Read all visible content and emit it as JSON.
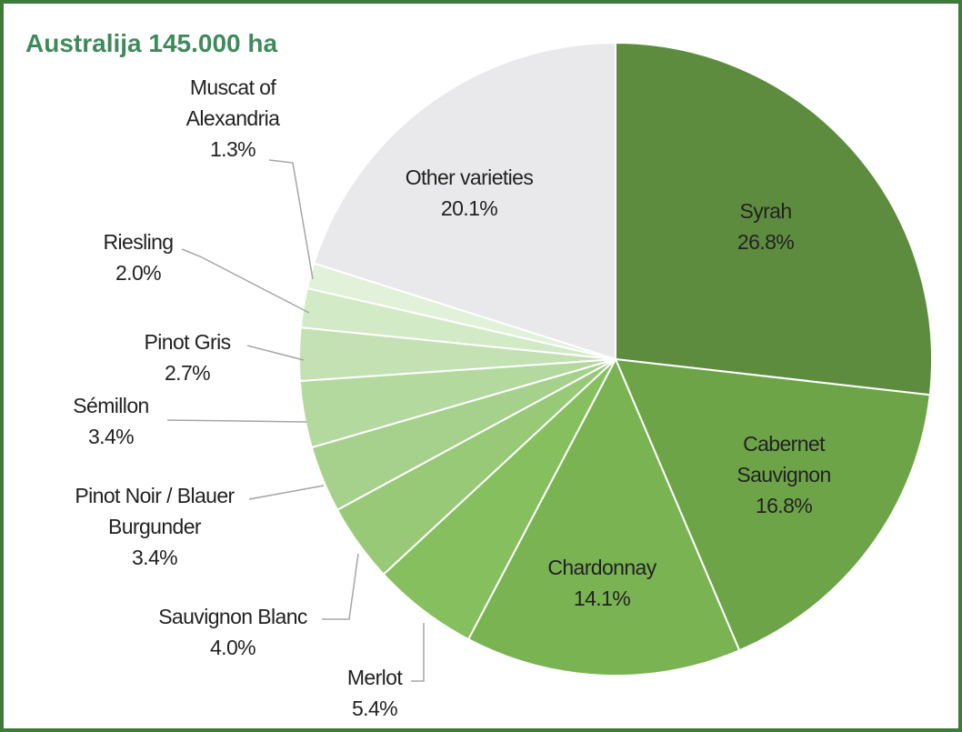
{
  "chart_data": {
    "type": "pie",
    "title": "Australija 145.000 ha",
    "slices": [
      {
        "label_lines": [
          "Syrah"
        ],
        "pct_text": "26.8%",
        "value": 26.8,
        "color": "#5e8c3e"
      },
      {
        "label_lines": [
          "Cabernet",
          "Sauvignon"
        ],
        "pct_text": "16.8%",
        "value": 16.8,
        "color": "#6da448"
      },
      {
        "label_lines": [
          "Chardonnay"
        ],
        "pct_text": "14.1%",
        "value": 14.1,
        "color": "#79b352"
      },
      {
        "label_lines": [
          "Merlot"
        ],
        "pct_text": "5.4%",
        "value": 5.4,
        "color": "#86c05e"
      },
      {
        "label_lines": [
          "Sauvignon Blanc"
        ],
        "pct_text": "4.0%",
        "value": 4.0,
        "color": "#97c977"
      },
      {
        "label_lines": [
          "Pinot Noir /  Blauer",
          "Burgunder"
        ],
        "pct_text": "3.4%",
        "value": 3.4,
        "color": "#a6d18c"
      },
      {
        "label_lines": [
          "Sémillon"
        ],
        "pct_text": "3.4%",
        "value": 3.4,
        "color": "#b4d99f"
      },
      {
        "label_lines": [
          "Pinot Gris"
        ],
        "pct_text": "2.7%",
        "value": 2.7,
        "color": "#c3e1b2"
      },
      {
        "label_lines": [
          "Riesling"
        ],
        "pct_text": "2.0%",
        "value": 2.0,
        "color": "#d3eac7"
      },
      {
        "label_lines": [
          "Muscat of",
          "Alexandria"
        ],
        "pct_text": "1.3%",
        "value": 1.3,
        "color": "#e2f1da"
      },
      {
        "label_lines": [
          "Other varieties"
        ],
        "pct_text": "20.1%",
        "value": 20.1,
        "color": "#e9e9eb"
      }
    ]
  }
}
